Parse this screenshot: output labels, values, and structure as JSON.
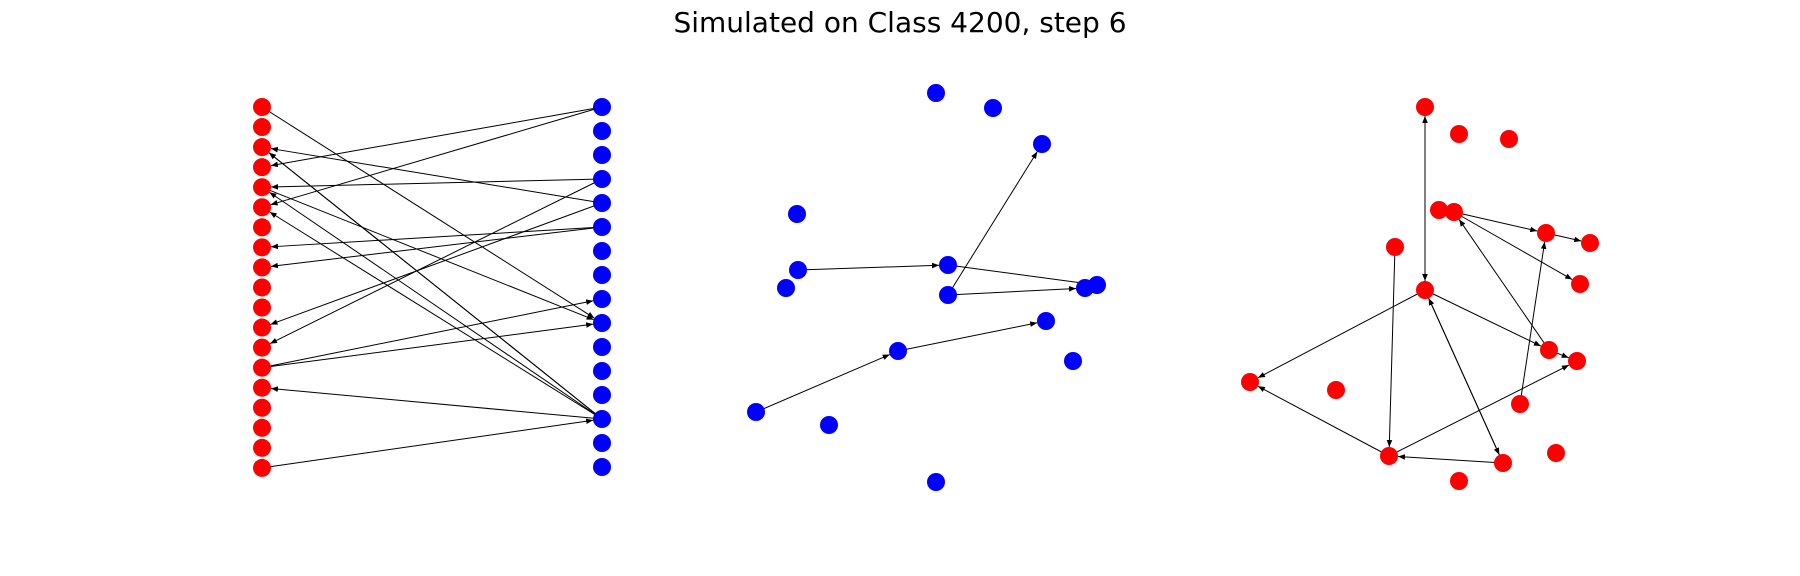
{
  "title": "Simulated on Class 4200, step 6",
  "colors": {
    "red": "#ff0000",
    "blue": "#0000ff",
    "edge": "#000000"
  },
  "panels": [
    {
      "name": "bipartite-graph",
      "left_color": "red",
      "right_color": "blue",
      "left_count": 19,
      "right_count": 16,
      "edges": [
        [
          3,
          0,
          "left"
        ],
        [
          5,
          0,
          "left"
        ],
        [
          4,
          3,
          "left"
        ],
        [
          2,
          4,
          "left"
        ],
        [
          12,
          3,
          "left"
        ],
        [
          11,
          4,
          "left"
        ],
        [
          7,
          5,
          "left"
        ],
        [
          8,
          5,
          "left"
        ],
        [
          2,
          13,
          "left"
        ],
        [
          2,
          13,
          "left"
        ],
        [
          4,
          13,
          "left"
        ],
        [
          5,
          13,
          "left"
        ],
        [
          14,
          13,
          "left"
        ],
        [
          13,
          8,
          "right"
        ],
        [
          13,
          9,
          "right"
        ],
        [
          0,
          9,
          "right"
        ],
        [
          4,
          9,
          "right"
        ],
        [
          18,
          13,
          "right"
        ]
      ]
    },
    {
      "name": "blue-graph",
      "color": "blue"
    },
    {
      "name": "red-graph",
      "color": "red"
    }
  ]
}
